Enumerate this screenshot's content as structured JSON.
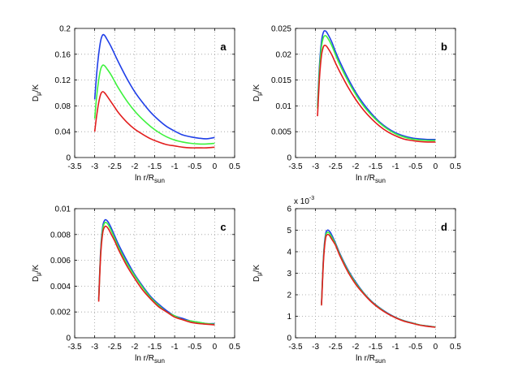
{
  "colors": {
    "blue": "#1f3fe8",
    "green": "#3df23d",
    "red": "#e21d1d"
  },
  "chart_data": [
    {
      "id": "a",
      "type": "line",
      "panel_label": "a",
      "xlabel": "ln r/R",
      "xlabel_sub": "sun",
      "ylabel": "D",
      "ylabel_sub": "μ",
      "ylabel_suffix": "/K",
      "xlim": [
        -3.5,
        0.5
      ],
      "ylim": [
        0,
        0.2
      ],
      "x_ticks": [
        -3.5,
        -3,
        -2.5,
        -2,
        -1.5,
        -1,
        -0.5,
        0,
        0.5
      ],
      "x_tick_labels": [
        "-3.5",
        "-3",
        "-2.5",
        "-2",
        "-1.5",
        "-1",
        "-0.5",
        "0",
        "0.5"
      ],
      "y_ticks": [
        0,
        0.04,
        0.08,
        0.12,
        0.16,
        0.2
      ],
      "y_tick_labels": [
        "0",
        "0.04",
        "0.08",
        "0.12",
        "0.16",
        "0.2"
      ],
      "exponent_label": "",
      "exponent_power": "",
      "grid": true,
      "x": [
        -3.0,
        -2.95,
        -2.9,
        -2.85,
        -2.8,
        -2.75,
        -2.7,
        -2.6,
        -2.5,
        -2.4,
        -2.2,
        -2.0,
        -1.8,
        -1.6,
        -1.4,
        -1.2,
        -1.0,
        -0.8,
        -0.6,
        -0.4,
        -0.2,
        0.0
      ],
      "series": [
        {
          "name": "blue",
          "color": "blue",
          "values": [
            0.09,
            0.13,
            0.16,
            0.181,
            0.19,
            0.189,
            0.184,
            0.173,
            0.16,
            0.147,
            0.123,
            0.102,
            0.085,
            0.07,
            0.058,
            0.048,
            0.041,
            0.035,
            0.032,
            0.03,
            0.029,
            0.031
          ]
        },
        {
          "name": "green",
          "color": "green",
          "values": [
            0.06,
            0.095,
            0.12,
            0.137,
            0.143,
            0.142,
            0.138,
            0.129,
            0.118,
            0.107,
            0.088,
            0.072,
            0.059,
            0.048,
            0.039,
            0.032,
            0.027,
            0.024,
            0.022,
            0.021,
            0.021,
            0.022
          ]
        },
        {
          "name": "red",
          "color": "red",
          "values": [
            0.04,
            0.065,
            0.085,
            0.098,
            0.102,
            0.1,
            0.096,
            0.087,
            0.078,
            0.069,
            0.055,
            0.044,
            0.036,
            0.029,
            0.024,
            0.02,
            0.018,
            0.016,
            0.015,
            0.015,
            0.015,
            0.016
          ]
        }
      ]
    },
    {
      "id": "b",
      "type": "line",
      "panel_label": "b",
      "xlabel": "ln r/R",
      "xlabel_sub": "sun",
      "ylabel": "D",
      "ylabel_sub": "μ",
      "ylabel_suffix": "/K",
      "xlim": [
        -3.5,
        0.5
      ],
      "ylim": [
        0,
        0.025
      ],
      "x_ticks": [
        -3.5,
        -3,
        -2.5,
        -2,
        -1.5,
        -1,
        -0.5,
        0,
        0.5
      ],
      "x_tick_labels": [
        "-3.5",
        "-3",
        "-2.5",
        "-2",
        "-1.5",
        "-1",
        "-0.5",
        "0",
        "0.5"
      ],
      "y_ticks": [
        0,
        0.005,
        0.01,
        0.015,
        0.02,
        0.025
      ],
      "y_tick_labels": [
        "0",
        "0.005",
        "0.01",
        "0.015",
        "0.02",
        "0.025"
      ],
      "exponent_label": "",
      "exponent_power": "",
      "grid": true,
      "x": [
        -2.95,
        -2.9,
        -2.85,
        -2.8,
        -2.75,
        -2.7,
        -2.6,
        -2.5,
        -2.4,
        -2.2,
        -2.0,
        -1.8,
        -1.6,
        -1.4,
        -1.2,
        -1.0,
        -0.8,
        -0.6,
        -0.4,
        -0.2,
        0.0
      ],
      "series": [
        {
          "name": "blue",
          "color": "blue",
          "values": [
            0.01,
            0.018,
            0.0225,
            0.0243,
            0.0245,
            0.024,
            0.0225,
            0.0205,
            0.0187,
            0.0155,
            0.0127,
            0.0104,
            0.0085,
            0.0069,
            0.0057,
            0.0048,
            0.0042,
            0.0038,
            0.0036,
            0.0035,
            0.0035
          ]
        },
        {
          "name": "green",
          "color": "green",
          "values": [
            0.0095,
            0.017,
            0.0215,
            0.0233,
            0.0236,
            0.0232,
            0.0218,
            0.0199,
            0.0181,
            0.015,
            0.0123,
            0.01,
            0.0082,
            0.0067,
            0.0055,
            0.0046,
            0.004,
            0.0036,
            0.0034,
            0.0033,
            0.0033
          ]
        },
        {
          "name": "red",
          "color": "red",
          "values": [
            0.008,
            0.0155,
            0.0198,
            0.0215,
            0.0217,
            0.0213,
            0.02,
            0.0183,
            0.0167,
            0.0138,
            0.0113,
            0.0092,
            0.0075,
            0.0061,
            0.005,
            0.0042,
            0.0036,
            0.0033,
            0.0031,
            0.003,
            0.003
          ]
        }
      ]
    },
    {
      "id": "c",
      "type": "line",
      "panel_label": "c",
      "xlabel": "ln r/R",
      "xlabel_sub": "sun",
      "ylabel": "D",
      "ylabel_sub": "μ",
      "ylabel_suffix": "/K",
      "xlim": [
        -3.5,
        0.5
      ],
      "ylim": [
        0,
        0.01
      ],
      "x_ticks": [
        -3.5,
        -3,
        -2.5,
        -2,
        -1.5,
        -1,
        -0.5,
        0,
        0.5
      ],
      "x_tick_labels": [
        "-3.5",
        "-3",
        "-2.5",
        "-2",
        "-1.5",
        "-1",
        "-0.5",
        "0",
        "0.5"
      ],
      "y_ticks": [
        0,
        0.002,
        0.004,
        0.006,
        0.008,
        0.01
      ],
      "y_tick_labels": [
        "0",
        "0.002",
        "0.004",
        "0.006",
        "0.008",
        "0.01"
      ],
      "exponent_label": "",
      "exponent_power": "",
      "grid": true,
      "x": [
        -2.9,
        -2.85,
        -2.8,
        -2.75,
        -2.7,
        -2.65,
        -2.6,
        -2.5,
        -2.4,
        -2.2,
        -2.0,
        -1.8,
        -1.6,
        -1.4,
        -1.2,
        -1.0,
        -0.8,
        -0.6,
        -0.4,
        -0.2,
        0.0
      ],
      "series": [
        {
          "name": "blue",
          "color": "blue",
          "values": [
            0.003,
            0.0068,
            0.0086,
            0.0091,
            0.0091,
            0.0089,
            0.0086,
            0.0079,
            0.0072,
            0.006,
            0.0049,
            0.004,
            0.0032,
            0.0026,
            0.0021,
            0.0017,
            0.0015,
            0.0013,
            0.0012,
            0.0011,
            0.0011
          ]
        },
        {
          "name": "green",
          "color": "green",
          "values": [
            0.0029,
            0.0066,
            0.0084,
            0.0089,
            0.0089,
            0.0087,
            0.0084,
            0.0077,
            0.007,
            0.0058,
            0.0048,
            0.0039,
            0.0031,
            0.0025,
            0.002,
            0.0017,
            0.0014,
            0.0013,
            0.0012,
            0.0011,
            0.00105
          ]
        },
        {
          "name": "red",
          "color": "red",
          "values": [
            0.0028,
            0.0064,
            0.0081,
            0.0086,
            0.0086,
            0.0084,
            0.0081,
            0.0075,
            0.0068,
            0.0056,
            0.0046,
            0.0037,
            0.003,
            0.0024,
            0.002,
            0.0016,
            0.0014,
            0.0012,
            0.0011,
            0.00105,
            0.001
          ]
        }
      ]
    },
    {
      "id": "d",
      "type": "line",
      "panel_label": "d",
      "xlabel": "ln r/R",
      "xlabel_sub": "sun",
      "ylabel": "D",
      "ylabel_sub": "μ",
      "ylabel_suffix": "/K",
      "xlim": [
        -3.5,
        0.5
      ],
      "ylim": [
        0,
        6
      ],
      "x_ticks": [
        -3.5,
        -3,
        -2.5,
        -2,
        -1.5,
        -1,
        -0.5,
        0,
        0.5
      ],
      "x_tick_labels": [
        "-3.5",
        "-3",
        "-2.5",
        "-2",
        "-1.5",
        "-1",
        "-0.5",
        "0",
        "0.5"
      ],
      "y_ticks": [
        0,
        1,
        2,
        3,
        4,
        5,
        6
      ],
      "y_tick_labels": [
        "0",
        "1",
        "2",
        "3",
        "4",
        "5",
        "6"
      ],
      "exponent_label": "x 10",
      "exponent_power": "-3",
      "grid": true,
      "x": [
        -2.85,
        -2.8,
        -2.75,
        -2.7,
        -2.65,
        -2.6,
        -2.5,
        -2.4,
        -2.2,
        -2.0,
        -1.8,
        -1.6,
        -1.4,
        -1.2,
        -1.0,
        -0.8,
        -0.6,
        -0.4,
        -0.2,
        0.0
      ],
      "series": [
        {
          "name": "blue",
          "color": "blue",
          "values": [
            1.6,
            3.8,
            4.8,
            5.0,
            4.95,
            4.8,
            4.4,
            3.95,
            3.2,
            2.6,
            2.1,
            1.7,
            1.4,
            1.15,
            0.95,
            0.8,
            0.7,
            0.6,
            0.55,
            0.5
          ]
        },
        {
          "name": "green",
          "color": "green",
          "values": [
            1.55,
            3.7,
            4.7,
            4.9,
            4.85,
            4.7,
            4.35,
            3.9,
            3.15,
            2.55,
            2.08,
            1.68,
            1.38,
            1.13,
            0.94,
            0.79,
            0.69,
            0.6,
            0.54,
            0.5
          ]
        },
        {
          "name": "red",
          "color": "red",
          "values": [
            1.5,
            3.6,
            4.6,
            4.8,
            4.75,
            4.6,
            4.3,
            3.85,
            3.1,
            2.5,
            2.05,
            1.66,
            1.36,
            1.12,
            0.93,
            0.78,
            0.68,
            0.59,
            0.53,
            0.49
          ]
        }
      ]
    }
  ]
}
